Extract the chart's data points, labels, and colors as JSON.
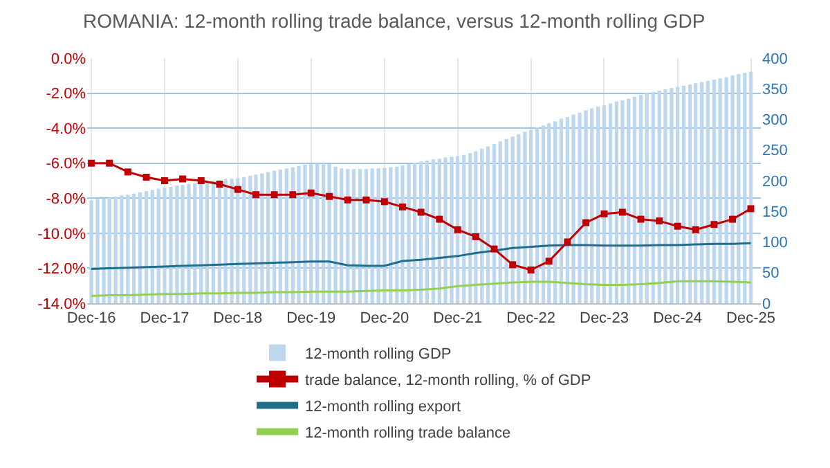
{
  "chart_data": {
    "type": "bar",
    "title": "ROMANIA: 12-month rolling trade balance, versus 12-month rolling GDP",
    "xlim": [
      "2016-11-10",
      "2026-01-20"
    ],
    "xticks": [
      {
        "value": "2016-12",
        "label": "Dec-16"
      },
      {
        "value": "2017-12",
        "label": "Dec-17"
      },
      {
        "value": "2018-12",
        "label": "Dec-18"
      },
      {
        "value": "2019-12",
        "label": "Dec-19"
      },
      {
        "value": "2020-12",
        "label": "Dec-20"
      },
      {
        "value": "2021-12",
        "label": "Dec-21"
      },
      {
        "value": "2022-12",
        "label": "Dec-22"
      },
      {
        "value": "2023-12",
        "label": "Dec-23"
      },
      {
        "value": "2024-12",
        "label": "Dec-24"
      },
      {
        "value": "2025-12",
        "label": "Dec-25"
      }
    ],
    "ylim": [
      -14,
      0
    ],
    "yticks": [
      {
        "value": -14,
        "label": "-14.0%"
      },
      {
        "value": -12,
        "label": "-12.0%"
      },
      {
        "value": -10,
        "label": "-10.0%"
      },
      {
        "value": -8,
        "label": "-8.0%"
      },
      {
        "value": -6,
        "label": "-6.0%"
      },
      {
        "value": -4,
        "label": "-4.0%"
      },
      {
        "value": -2,
        "label": "-2.0%"
      },
      {
        "value": 0,
        "label": "0.0%"
      }
    ],
    "y2lim": [
      0,
      400
    ],
    "y2ticks": [
      0,
      50,
      100,
      150,
      200,
      250,
      300,
      350,
      400
    ],
    "grid": true,
    "legend": "bottom",
    "series": [
      {
        "name": "12-month rolling GDP",
        "axis": "y2",
        "color": "#bdd7ee",
        "x": [
          "2016-12",
          "2017-01",
          "2017-02",
          "2017-03",
          "2017-04",
          "2017-05",
          "2017-06",
          "2017-07",
          "2017-08",
          "2017-09",
          "2017-10",
          "2017-11",
          "2017-12",
          "2018-01",
          "2018-02",
          "2018-03",
          "2018-04",
          "2018-05",
          "2018-06",
          "2018-07",
          "2018-08",
          "2018-09",
          "2018-10",
          "2018-11",
          "2018-12",
          "2019-01",
          "2019-02",
          "2019-03",
          "2019-04",
          "2019-05",
          "2019-06",
          "2019-07",
          "2019-08",
          "2019-09",
          "2019-10",
          "2019-11",
          "2019-12",
          "2020-01",
          "2020-02",
          "2020-03",
          "2020-04",
          "2020-05",
          "2020-06",
          "2020-07",
          "2020-08",
          "2020-09",
          "2020-10",
          "2020-11",
          "2020-12",
          "2021-01",
          "2021-02",
          "2021-03",
          "2021-04",
          "2021-05",
          "2021-06",
          "2021-07",
          "2021-08",
          "2021-09",
          "2021-10",
          "2021-11",
          "2021-12",
          "2022-01",
          "2022-02",
          "2022-03",
          "2022-04",
          "2022-05",
          "2022-06",
          "2022-07",
          "2022-08",
          "2022-09",
          "2022-10",
          "2022-11",
          "2022-12",
          "2023-01",
          "2023-02",
          "2023-03",
          "2023-04",
          "2023-05",
          "2023-06",
          "2023-07",
          "2023-08",
          "2023-09",
          "2023-10",
          "2023-11",
          "2023-12",
          "2024-01",
          "2024-02",
          "2024-03",
          "2024-04",
          "2024-05",
          "2024-06",
          "2024-07",
          "2024-08",
          "2024-09",
          "2024-10",
          "2024-11",
          "2024-12",
          "2025-01",
          "2025-02",
          "2025-03",
          "2025-04",
          "2025-05",
          "2025-06",
          "2025-07",
          "2025-08",
          "2025-09",
          "2025-10",
          "2025-11",
          "2025-12"
        ],
        "values": [
          168,
          170,
          171,
          172,
          174,
          176,
          177,
          179,
          181,
          183,
          185,
          187,
          189,
          190,
          192,
          193,
          195,
          196,
          198,
          199,
          200,
          201,
          202,
          203,
          204,
          206,
          208,
          210,
          212,
          214,
          216,
          218,
          220,
          222,
          224,
          226,
          227,
          228,
          228,
          227,
          223,
          220,
          219,
          219,
          219,
          219,
          220,
          220,
          221,
          222,
          223,
          225,
          227,
          229,
          231,
          233,
          235,
          236,
          238,
          239,
          240,
          242,
          245,
          248,
          252,
          256,
          260,
          264,
          268,
          272,
          276,
          280,
          283,
          287,
          290,
          294,
          297,
          301,
          304,
          308,
          311,
          315,
          318,
          321,
          323,
          326,
          329,
          331,
          334,
          337,
          340,
          343,
          345,
          347,
          349,
          351,
          353,
          355,
          357,
          359,
          361,
          363,
          365,
          367,
          369,
          372,
          374,
          376,
          378
        ]
      },
      {
        "name": "trade balance, 12-month rolling, % of GDP",
        "type": "line",
        "axis": "y",
        "color": "#c00000",
        "marker": "square",
        "x": [
          "2016-12",
          "2017-03",
          "2017-06",
          "2017-09",
          "2017-12",
          "2018-03",
          "2018-06",
          "2018-09",
          "2018-12",
          "2019-03",
          "2019-06",
          "2019-09",
          "2019-12",
          "2020-03",
          "2020-06",
          "2020-09",
          "2020-12",
          "2021-03",
          "2021-06",
          "2021-09",
          "2021-12",
          "2022-03",
          "2022-06",
          "2022-09",
          "2022-12",
          "2023-03",
          "2023-06",
          "2023-09",
          "2023-12",
          "2024-03",
          "2024-06",
          "2024-09",
          "2024-12",
          "2025-03",
          "2025-06",
          "2025-09",
          "2025-12"
        ],
        "values": [
          -6.0,
          -6.0,
          -6.5,
          -6.8,
          -7.0,
          -6.9,
          -7.0,
          -7.2,
          -7.5,
          -7.8,
          -7.8,
          -7.8,
          -7.7,
          -7.9,
          -8.1,
          -8.1,
          -8.2,
          -8.5,
          -8.8,
          -9.2,
          -9.8,
          -10.2,
          -10.9,
          -11.8,
          -12.1,
          -11.6,
          -10.5,
          -9.4,
          -8.9,
          -8.8,
          -9.2,
          -9.3,
          -9.6,
          -9.8,
          -9.5,
          -9.2,
          -8.6
        ]
      },
      {
        "name": "12-month rolling export",
        "type": "line",
        "axis": "y2",
        "color": "#1f6e8c",
        "x": [
          "2016-12",
          "2017-03",
          "2017-06",
          "2017-09",
          "2017-12",
          "2018-03",
          "2018-06",
          "2018-09",
          "2018-12",
          "2019-03",
          "2019-06",
          "2019-09",
          "2019-12",
          "2020-03",
          "2020-06",
          "2020-09",
          "2020-12",
          "2021-03",
          "2021-06",
          "2021-09",
          "2021-12",
          "2022-03",
          "2022-06",
          "2022-09",
          "2022-12",
          "2023-03",
          "2023-06",
          "2023-09",
          "2023-12",
          "2024-03",
          "2024-06",
          "2024-09",
          "2024-12",
          "2025-03",
          "2025-06",
          "2025-09",
          "2025-12"
        ],
        "values": [
          56,
          57,
          58,
          59,
          60,
          61,
          62,
          63,
          64,
          65,
          66,
          67,
          68,
          68,
          62,
          61,
          61,
          69,
          71,
          74,
          77,
          82,
          86,
          90,
          92,
          94,
          95,
          95,
          94,
          94,
          94,
          95,
          95,
          96,
          97,
          97,
          98
        ]
      },
      {
        "name": "12-month rolling trade balance",
        "type": "line",
        "axis": "y2",
        "color": "#92d050",
        "x": [
          "2016-12",
          "2017-03",
          "2017-06",
          "2017-09",
          "2017-12",
          "2018-03",
          "2018-06",
          "2018-09",
          "2018-12",
          "2019-03",
          "2019-06",
          "2019-09",
          "2019-12",
          "2020-03",
          "2020-06",
          "2020-09",
          "2020-12",
          "2021-03",
          "2021-06",
          "2021-09",
          "2021-12",
          "2022-03",
          "2022-06",
          "2022-09",
          "2022-12",
          "2023-03",
          "2023-06",
          "2023-09",
          "2023-12",
          "2024-03",
          "2024-06",
          "2024-09",
          "2024-12",
          "2025-03",
          "2025-06",
          "2025-09",
          "2025-12"
        ],
        "values": [
          12,
          13,
          13,
          14,
          15,
          15,
          16,
          16,
          17,
          17,
          18,
          18,
          19,
          19,
          19,
          20,
          21,
          21,
          22,
          24,
          28,
          30,
          32,
          34,
          35,
          35,
          33,
          31,
          30,
          30,
          31,
          33,
          36,
          36,
          36,
          35,
          34
        ]
      }
    ]
  }
}
